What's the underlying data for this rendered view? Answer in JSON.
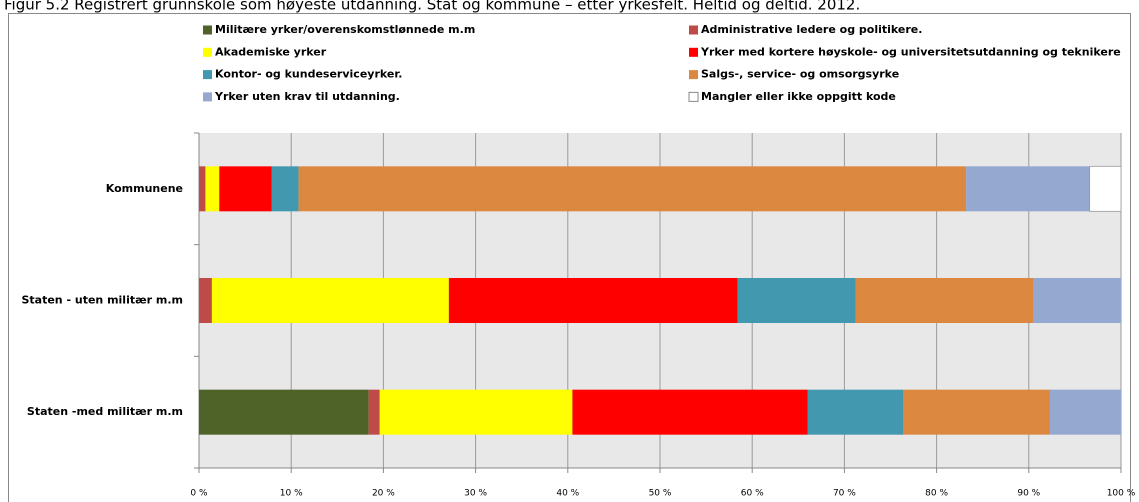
{
  "chart_data": {
    "type": "stacked-bar-horizontal",
    "title": "Figur 5.2 Registrert grunnskole som høyeste utdanning. Stat og kommune – etter yrkesfelt. Heltid og deltid. 2012.",
    "categories": [
      "Kommunene",
      "Staten - uten militær m.m",
      "Staten -med militær m.m"
    ],
    "series": [
      {
        "name": "Militære yrker/overenskomstlønnede m.m",
        "color": "#4f6228",
        "values": [
          0,
          0,
          18.4
        ]
      },
      {
        "name": "Administrative ledere og politikere.",
        "color": "#be4b48",
        "values": [
          0.7,
          1.4,
          1.2
        ]
      },
      {
        "name": "Akademiske yrker",
        "color": "#ffff00",
        "values": [
          1.5,
          25.7,
          20.9
        ]
      },
      {
        "name": "Yrker med kortere høyskole- og universitetsutdanning og teknikere",
        "color": "#ff0000",
        "values": [
          5.7,
          31.3,
          25.5
        ]
      },
      {
        "name": "Kontor- og kundeserviceyrker.",
        "color": "#4198af",
        "values": [
          2.9,
          12.8,
          10.4
        ]
      },
      {
        "name": "Salgs-, service- og omsorgsyrke",
        "color": "#dd8841",
        "values": [
          72.4,
          19.3,
          15.9
        ]
      },
      {
        "name": "Yrker uten krav til utdanning.",
        "color": "#95a8d0",
        "values": [
          13.4,
          9.5,
          7.7
        ]
      },
      {
        "name": "Mangler eller ikke oppgitt kode",
        "color": "#ffffff",
        "values": [
          3.4,
          0,
          0
        ]
      }
    ],
    "xlim": [
      0,
      100
    ],
    "xticks": [
      {
        "value": 0,
        "label": "0 %"
      },
      {
        "value": 10,
        "label": "10 %"
      },
      {
        "value": 20,
        "label": "20 %"
      },
      {
        "value": 30,
        "label": "30 %"
      },
      {
        "value": 40,
        "label": "40 %"
      },
      {
        "value": 50,
        "label": "50 %"
      },
      {
        "value": 60,
        "label": "60 %"
      },
      {
        "value": 70,
        "label": "70 %"
      },
      {
        "value": 80,
        "label": "80 %"
      },
      {
        "value": 90,
        "label": "90 %"
      },
      {
        "value": 100,
        "label": "100 %"
      }
    ],
    "grid": true,
    "legend": "top"
  }
}
